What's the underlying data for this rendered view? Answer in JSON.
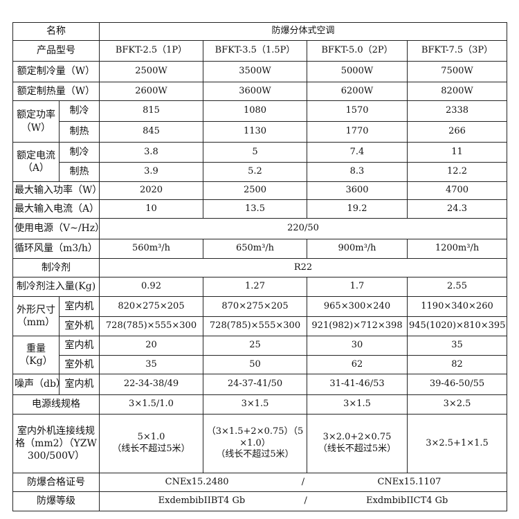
{
  "table": {
    "rows": [
      [
        "名称",
        "防爆分体式空调"
      ],
      [
        "产品型号",
        "BFKT-2.5（1P）",
        "BFKT-3.5（1.5P）",
        "BFKT-5.0（2P）",
        "BFKT-7.5（3P）"
      ],
      [
        "额定制冷量（W）",
        "2500W",
        "3500W",
        "5000W",
        "7500W"
      ],
      [
        "额定制热量（W）",
        "2600W",
        "3600W",
        "6200W",
        "8200W"
      ],
      [
        [
          "额定功率",
          "（W）"
        ],
        "制冷",
        "815",
        "1080",
        "1570",
        "2338"
      ],
      [
        "制热",
        "845",
        "1130",
        "1770",
        "266"
      ],
      [
        [
          "额定电流",
          "（A）"
        ],
        "制冷",
        "3.8",
        "5",
        "7.4",
        "11"
      ],
      [
        "制热",
        "3.9",
        "5.2",
        "8.3",
        "12.2"
      ],
      [
        "最大输入功率（W）",
        "2020",
        "2500",
        "3600",
        "4700"
      ],
      [
        "最大输入电流（A）",
        "10",
        "13.5",
        "19.2",
        "24.3"
      ],
      [
        "使用电源（V~/Hz）",
        "220/50"
      ],
      [
        "循环风量（m3/h）",
        "560m³/h",
        "650m³/h",
        "900m³/h",
        "1200m³/h"
      ],
      [
        "制冷剂",
        "R22"
      ],
      [
        "制冷剂注入量(Kg)",
        "0.92",
        "1.27",
        "1.7",
        "2.55"
      ],
      [
        [
          "外形尺寸",
          "（mm）"
        ],
        "室内机",
        "820×275×205",
        "870×275×205",
        "965×300×240",
        "1190×340×260"
      ],
      [
        "室外机",
        "728(785)×555×300",
        "728(785)×555×300",
        "921(982)×712×398",
        "945(1020)×810×395"
      ],
      [
        [
          "重量",
          "（Kg）"
        ],
        "室内机",
        "20",
        "25",
        "30",
        "35"
      ],
      [
        "室外机",
        "35",
        "50",
        "62",
        "82"
      ],
      [
        "噪声（db）",
        "室内机",
        "22-34-38/49",
        "24-37-41/50",
        "31-41-46/53",
        "39-46-50/55"
      ],
      [
        "电源线规格",
        "3×1.5/1.0",
        "3×1.5",
        "3×1.5",
        "3×2.5"
      ],
      [
        [
          "室内外机连接线规",
          "格（mm2）（YZW",
          "300/500V）"
        ],
        [
          "5×1.0",
          "（线长不超过5米）"
        ],
        [
          "（3×1.5+2×0.75）（5",
          "×1.0）",
          "（线长不超过5米）"
        ],
        [
          "3×2.0+2×0.75",
          "（线长不超过5米）"
        ],
        [
          "3×2.5+1×1.5"
        ]
      ],
      [
        "防爆合格证号",
        [
          "CNEx15.2480",
          "/",
          "CNEx15.1107"
        ]
      ],
      [
        "防爆等级",
        [
          "ExdembibIIBT4 Gb",
          "/",
          "ExdmbibIICT4 Gb"
        ]
      ]
    ]
  }
}
